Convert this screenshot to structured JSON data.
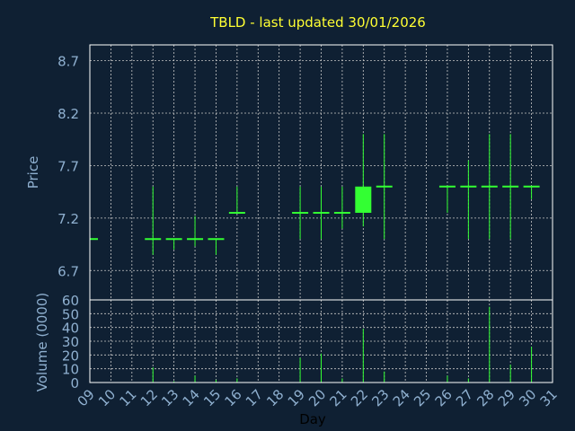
{
  "chart_data": {
    "type": "candlestick",
    "title": "TBLD - last updated 30/01/2026",
    "xlabel": "Day",
    "price": {
      "ylabel": "Price",
      "ylim": [
        6.42,
        8.85
      ],
      "ticks": [
        6.7,
        7.2,
        7.7,
        8.2,
        8.7
      ],
      "tick_labels": [
        "6.7",
        "7.2",
        "7.7",
        "8.2",
        "8.7"
      ]
    },
    "volume": {
      "ylabel": "Volume (0000)",
      "ylim": [
        0,
        60
      ],
      "ticks": [
        0,
        10,
        20,
        30,
        40,
        50,
        60
      ],
      "tick_labels": [
        "0",
        "10",
        "20",
        "30",
        "40",
        "50",
        "60"
      ]
    },
    "x_ticks": [
      "09",
      "10",
      "11",
      "12",
      "13",
      "14",
      "15",
      "16",
      "17",
      "18",
      "19",
      "20",
      "21",
      "22",
      "23",
      "24",
      "25",
      "26",
      "27",
      "28",
      "29",
      "30",
      "31"
    ],
    "x_range": [
      9,
      31
    ],
    "grid": true,
    "candles": [
      {
        "day": 9,
        "open": 7.0,
        "high": 7.0,
        "low": 7.0,
        "close": 7.0,
        "volume": 0
      },
      {
        "day": 12,
        "open": 7.0,
        "high": 7.5,
        "low": 6.85,
        "close": 7.0,
        "volume": 11
      },
      {
        "day": 13,
        "open": 7.0,
        "high": 7.0,
        "low": 6.9,
        "close": 7.0,
        "volume": 1
      },
      {
        "day": 14,
        "open": 7.0,
        "high": 7.22,
        "low": 6.93,
        "close": 7.0,
        "volume": 5
      },
      {
        "day": 15,
        "open": 7.0,
        "high": 7.0,
        "low": 6.85,
        "close": 7.0,
        "volume": 2
      },
      {
        "day": 16,
        "open": 7.25,
        "high": 7.5,
        "low": 7.25,
        "close": 7.25,
        "volume": 3
      },
      {
        "day": 19,
        "open": 7.25,
        "high": 7.5,
        "low": 7.0,
        "close": 7.25,
        "volume": 18
      },
      {
        "day": 20,
        "open": 7.25,
        "high": 7.5,
        "low": 7.0,
        "close": 7.25,
        "volume": 21
      },
      {
        "day": 21,
        "open": 7.25,
        "high": 7.5,
        "low": 7.1,
        "close": 7.25,
        "volume": 3
      },
      {
        "day": 22,
        "open": 7.25,
        "high": 8.0,
        "low": 7.12,
        "close": 7.5,
        "volume": 39
      },
      {
        "day": 23,
        "open": 7.5,
        "high": 8.0,
        "low": 7.0,
        "close": 7.5,
        "volume": 8
      },
      {
        "day": 26,
        "open": 7.5,
        "high": 7.5,
        "low": 7.25,
        "close": 7.5,
        "volume": 5
      },
      {
        "day": 27,
        "open": 7.5,
        "high": 7.75,
        "low": 7.0,
        "close": 7.5,
        "volume": 3
      },
      {
        "day": 28,
        "open": 7.5,
        "high": 8.0,
        "low": 7.0,
        "close": 7.5,
        "volume": 55
      },
      {
        "day": 29,
        "open": 7.5,
        "high": 8.0,
        "low": 7.0,
        "close": 7.5,
        "volume": 13
      },
      {
        "day": 30,
        "open": 7.5,
        "high": 7.5,
        "low": 7.38,
        "close": 7.5,
        "volume": 26
      }
    ],
    "colors": {
      "background": "#0f2033",
      "plot_border": "#ffffff",
      "grid": "#c8c8c8",
      "title": "#ffff33",
      "tick_label": "#8fb0d0",
      "axis_label": "#8fb0d0",
      "xlabel": "#000000",
      "candle": "#33ff33",
      "volume": "#33ff33"
    }
  }
}
